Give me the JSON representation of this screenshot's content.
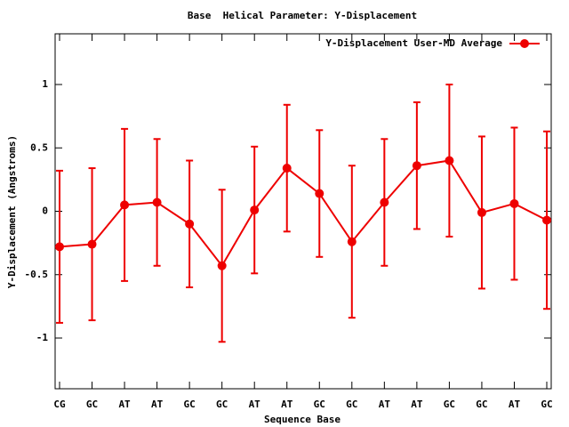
{
  "chart_data": {
    "type": "line",
    "title": "Base  Helical Parameter: Y-Displacement",
    "x_label": "Sequence Base",
    "y_label": "Y-Displacement (Angstroms)",
    "categories": [
      "CG",
      "GC",
      "AT",
      "AT",
      "GC",
      "GC",
      "AT",
      "AT",
      "GC",
      "GC",
      "AT",
      "AT",
      "GC",
      "GC",
      "AT",
      "GC"
    ],
    "series": [
      {
        "name": "Y-Displacement User-MD Average",
        "color": "#ee0000",
        "values": [
          -0.28,
          -0.26,
          0.05,
          0.07,
          -0.1,
          -0.43,
          0.01,
          0.34,
          0.14,
          -0.24,
          0.07,
          0.36,
          0.4,
          -0.01,
          0.06,
          -0.07
        ],
        "errors": [
          0.6,
          0.6,
          0.6,
          0.5,
          0.5,
          0.6,
          0.5,
          0.5,
          0.5,
          0.6,
          0.5,
          0.5,
          0.6,
          0.6,
          0.6,
          0.7
        ]
      }
    ],
    "ylim": [
      -1.4,
      1.4
    ],
    "yticks": [
      -1,
      -0.5,
      0,
      0.5,
      1
    ],
    "legend": "top-right"
  }
}
